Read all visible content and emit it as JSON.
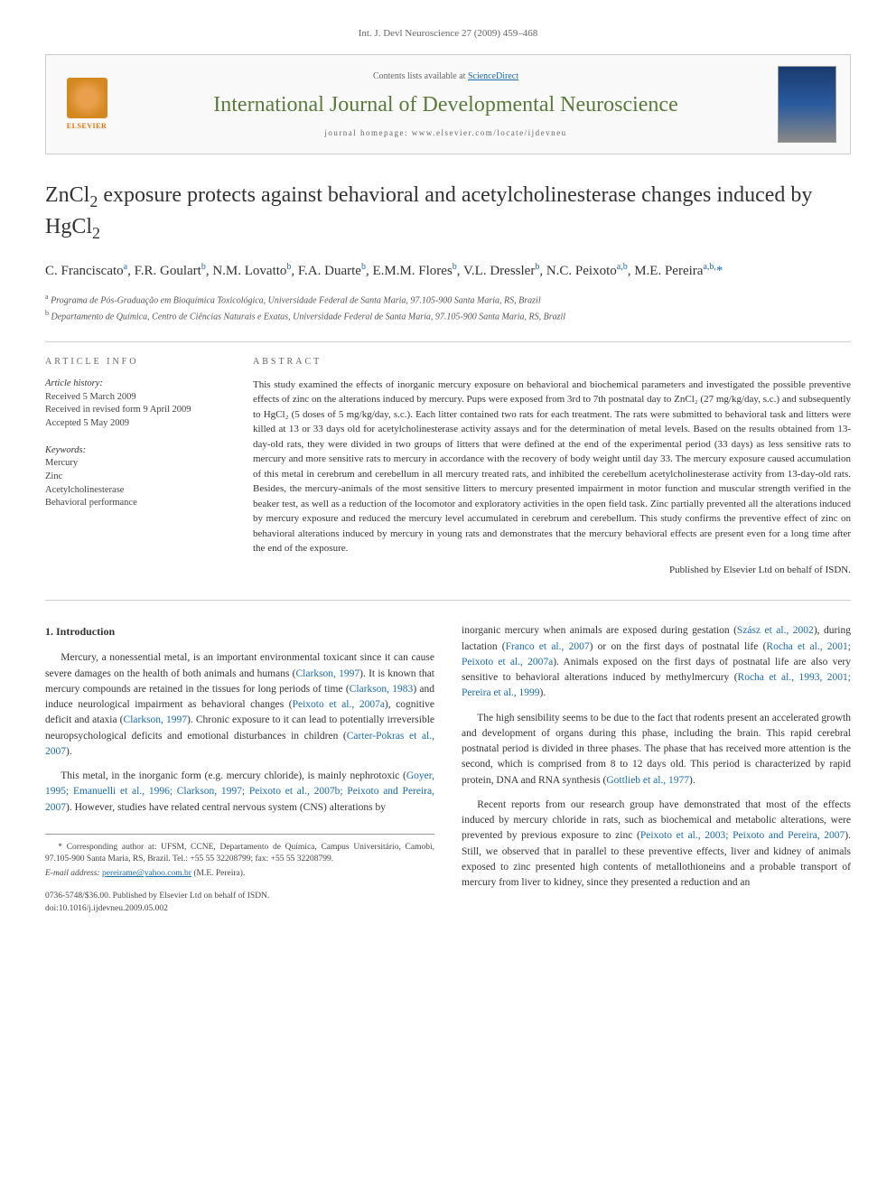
{
  "header": {
    "citation": "Int. J. Devl Neuroscience 27 (2009) 459–468"
  },
  "banner": {
    "contents_prefix": "Contents lists available at ",
    "contents_link": "ScienceDirect",
    "journal_name": "International Journal of Developmental Neuroscience",
    "homepage_prefix": "journal homepage: ",
    "homepage_url": "www.elsevier.com/locate/ijdevneu",
    "publisher_label": "ELSEVIER"
  },
  "article": {
    "title_pre": "ZnCl",
    "title_sub1": "2",
    "title_mid": " exposure protects against behavioral and acetylcholinesterase changes induced by HgCl",
    "title_sub2": "2",
    "authors_html": "C. Franciscato <sup>a</sup>, F.R. Goulart <sup>b</sup>, N.M. Lovatto <sup>b</sup>, F.A. Duarte <sup>b</sup>, E.M.M. Flores <sup>b</sup>, V.L. Dressler <sup>b</sup>, N.C. Peixoto <sup>a,b</sup>, M.E. Pereira <sup>a,b,</sup>*",
    "affiliations": {
      "a": "Programa de Pós-Graduação em Bioquímica Toxicológica, Universidade Federal de Santa Maria, 97.105-900 Santa Maria, RS, Brazil",
      "b": "Departamento de Química, Centro de Ciências Naturais e Exatas, Universidade Federal de Santa Maria, 97.105-900 Santa Maria, RS, Brazil"
    }
  },
  "info": {
    "heading": "ARTICLE INFO",
    "history_label": "Article history:",
    "received": "Received 5 March 2009",
    "revised": "Received in revised form 9 April 2009",
    "accepted": "Accepted 5 May 2009",
    "keywords_label": "Keywords:",
    "keywords": [
      "Mercury",
      "Zinc",
      "Acetylcholinesterase",
      "Behavioral performance"
    ]
  },
  "abstract": {
    "heading": "ABSTRACT",
    "text": "This study examined the effects of inorganic mercury exposure on behavioral and biochemical parameters and investigated the possible preventive effects of zinc on the alterations induced by mercury. Pups were exposed from 3rd to 7th postnatal day to ZnCl₂ (27 mg/kg/day, s.c.) and subsequently to HgCl₂ (5 doses of 5 mg/kg/day, s.c.). Each litter contained two rats for each treatment. The rats were submitted to behavioral task and litters were killed at 13 or 33 days old for acetylcholinesterase activity assays and for the determination of metal levels. Based on the results obtained from 13-day-old rats, they were divided in two groups of litters that were defined at the end of the experimental period (33 days) as less sensitive rats to mercury and more sensitive rats to mercury in accordance with the recovery of body weight until day 33. The mercury exposure caused accumulation of this metal in cerebrum and cerebellum in all mercury treated rats, and inhibited the cerebellum acetylcholinesterase activity from 13-day-old rats. Besides, the mercury-animals of the most sensitive litters to mercury presented impairment in motor function and muscular strength verified in the beaker test, as well as a reduction of the locomotor and exploratory activities in the open field task. Zinc partially prevented all the alterations induced by mercury exposure and reduced the mercury level accumulated in cerebrum and cerebellum. This study confirms the preventive effect of zinc on behavioral alterations induced by mercury in young rats and demonstrates that the mercury behavioral effects are present even for a long time after the end of the exposure.",
    "publisher_note": "Published by Elsevier Ltd on behalf of ISDN."
  },
  "body": {
    "intro_heading": "1. Introduction",
    "left": {
      "p1_pre": "Mercury, a nonessential metal, is an important environmental toxicant since it can cause severe damages on the health of both animals and humans (",
      "p1_c1": "Clarkson, 1997",
      "p1_mid1": "). It is known that mercury compounds are retained in the tissues for long periods of time (",
      "p1_c2": "Clarkson, 1983",
      "p1_mid2": ") and induce neurological impairment as behavioral changes (",
      "p1_c3": "Peixoto et al., 2007a",
      "p1_mid3": "), cognitive deficit and ataxia (",
      "p1_c4": "Clarkson, 1997",
      "p1_mid4": "). Chronic exposure to it can lead to potentially irreversible neuropsychological deficits and emotional disturbances in children (",
      "p1_c5": "Carter-Pokras et al., 2007",
      "p1_end": ").",
      "p2_pre": "This metal, in the inorganic form (e.g. mercury chloride), is mainly nephrotoxic (",
      "p2_c1": "Goyer, 1995; Emanuelli et al., 1996; Clarkson, 1997; Peixoto et al., 2007b; Peixoto and Pereira, 2007",
      "p2_end": "). However, studies have related central nervous system (CNS) alterations by"
    },
    "right": {
      "p1_pre": "inorganic mercury when animals are exposed during gestation (",
      "p1_c1": "Szász et al., 2002",
      "p1_mid1": "), during lactation (",
      "p1_c2": "Franco et al., 2007",
      "p1_mid2": ") or on the first days of postnatal life (",
      "p1_c3": "Rocha et al., 2001; Peixoto et al., 2007a",
      "p1_mid3": "). Animals exposed on the first days of postnatal life are also very sensitive to behavioral alterations induced by methylmercury (",
      "p1_c4": "Rocha et al., 1993, 2001; Pereira et al., 1999",
      "p1_end": ").",
      "p2_pre": "The high sensibility seems to be due to the fact that rodents present an accelerated growth and development of organs during this phase, including the brain. This rapid cerebral postnatal period is divided in three phases. The phase that has received more attention is the second, which is comprised from 8 to 12 days old. This period is characterized by rapid protein, DNA and RNA synthesis (",
      "p2_c1": "Gottlieb et al., 1977",
      "p2_end": ").",
      "p3_pre": "Recent reports from our research group have demonstrated that most of the effects induced by mercury chloride in rats, such as biochemical and metabolic alterations, were prevented by previous exposure to zinc (",
      "p3_c1": "Peixoto et al., 2003; Peixoto and Pereira, 2007",
      "p3_end": "). Still, we observed that in parallel to these preventive effects, liver and kidney of animals exposed to zinc presented high contents of metallothioneins and a probable transport of mercury from liver to kidney, since they presented a reduction and an"
    }
  },
  "footnote": {
    "corresponding": "* Corresponding author at: UFSM, CCNE, Departamento de Química, Campus Universitário, Camobi, 97.105-900 Santa Maria, RS, Brazil. Tel.: +55 55 32208799; fax: +55 55 32208799.",
    "email_label": "E-mail address:",
    "email": "pereirame@yahoo.com.br",
    "email_suffix": "(M.E. Pereira).",
    "copyright": "0736-5748/$36.00. Published by Elsevier Ltd on behalf of ISDN.",
    "doi": "doi:10.1016/j.ijdevneu.2009.05.002"
  }
}
